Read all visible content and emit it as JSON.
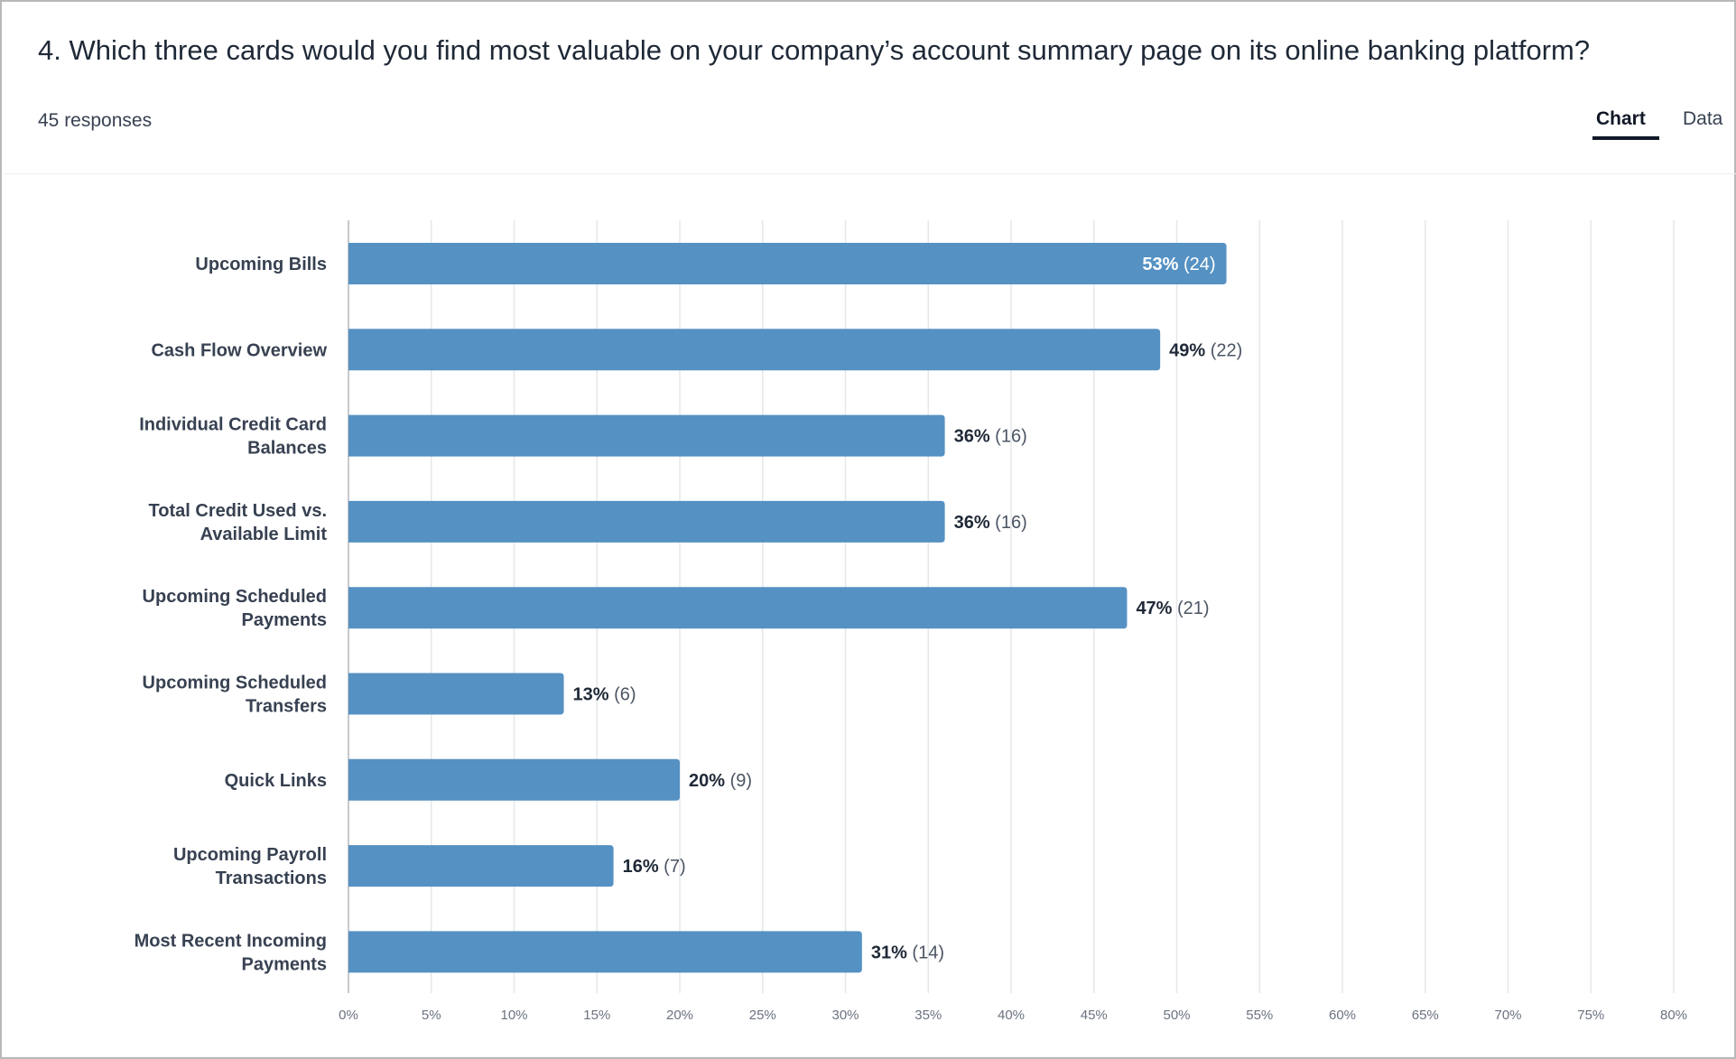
{
  "question": {
    "title": "4. Which three cards would you find most valuable on your company’s account summary page on its online banking platform?",
    "responses": "45 responses"
  },
  "tabs": [
    {
      "label": "Chart",
      "active": true
    },
    {
      "label": "Data",
      "active": false
    }
  ],
  "colors": {
    "bar": "#5591c3",
    "grid": "#e5e7eb",
    "axis": "#c7c9cc",
    "inside_label": "#ffffff",
    "outside_label": "#1f2937"
  },
  "chart_data": {
    "type": "bar",
    "orientation": "horizontal",
    "categories": [
      [
        "Upcoming Bills"
      ],
      [
        "Cash Flow Overview"
      ],
      [
        "Individual Credit Card",
        "Balances"
      ],
      [
        "Total Credit Used vs.",
        "Available Limit"
      ],
      [
        "Upcoming Scheduled",
        "Payments"
      ],
      [
        "Upcoming Scheduled",
        "Transfers"
      ],
      [
        "Quick Links"
      ],
      [
        "Upcoming Payroll",
        "Transactions"
      ],
      [
        "Most Recent Incoming",
        "Payments"
      ]
    ],
    "values": [
      53,
      49,
      36,
      36,
      47,
      13,
      20,
      16,
      31
    ],
    "counts": [
      24,
      22,
      16,
      16,
      21,
      6,
      9,
      7,
      14
    ],
    "value_labels": [
      "53%",
      "49%",
      "36%",
      "36%",
      "47%",
      "13%",
      "20%",
      "16%",
      "31%"
    ],
    "count_labels": [
      "(24)",
      "(22)",
      "(16)",
      "(16)",
      "(21)",
      "(6)",
      "(9)",
      "(7)",
      "(14)"
    ],
    "xlim": [
      0,
      80
    ],
    "xticks": [
      0,
      5,
      10,
      15,
      20,
      25,
      30,
      35,
      40,
      45,
      50,
      55,
      60,
      65,
      70,
      75,
      80
    ],
    "xtick_labels": [
      "0%",
      "5%",
      "10%",
      "15%",
      "20%",
      "25%",
      "30%",
      "35%",
      "40%",
      "45%",
      "50%",
      "55%",
      "60%",
      "65%",
      "70%",
      "75%",
      "80%"
    ],
    "grid": true,
    "legend": false
  }
}
